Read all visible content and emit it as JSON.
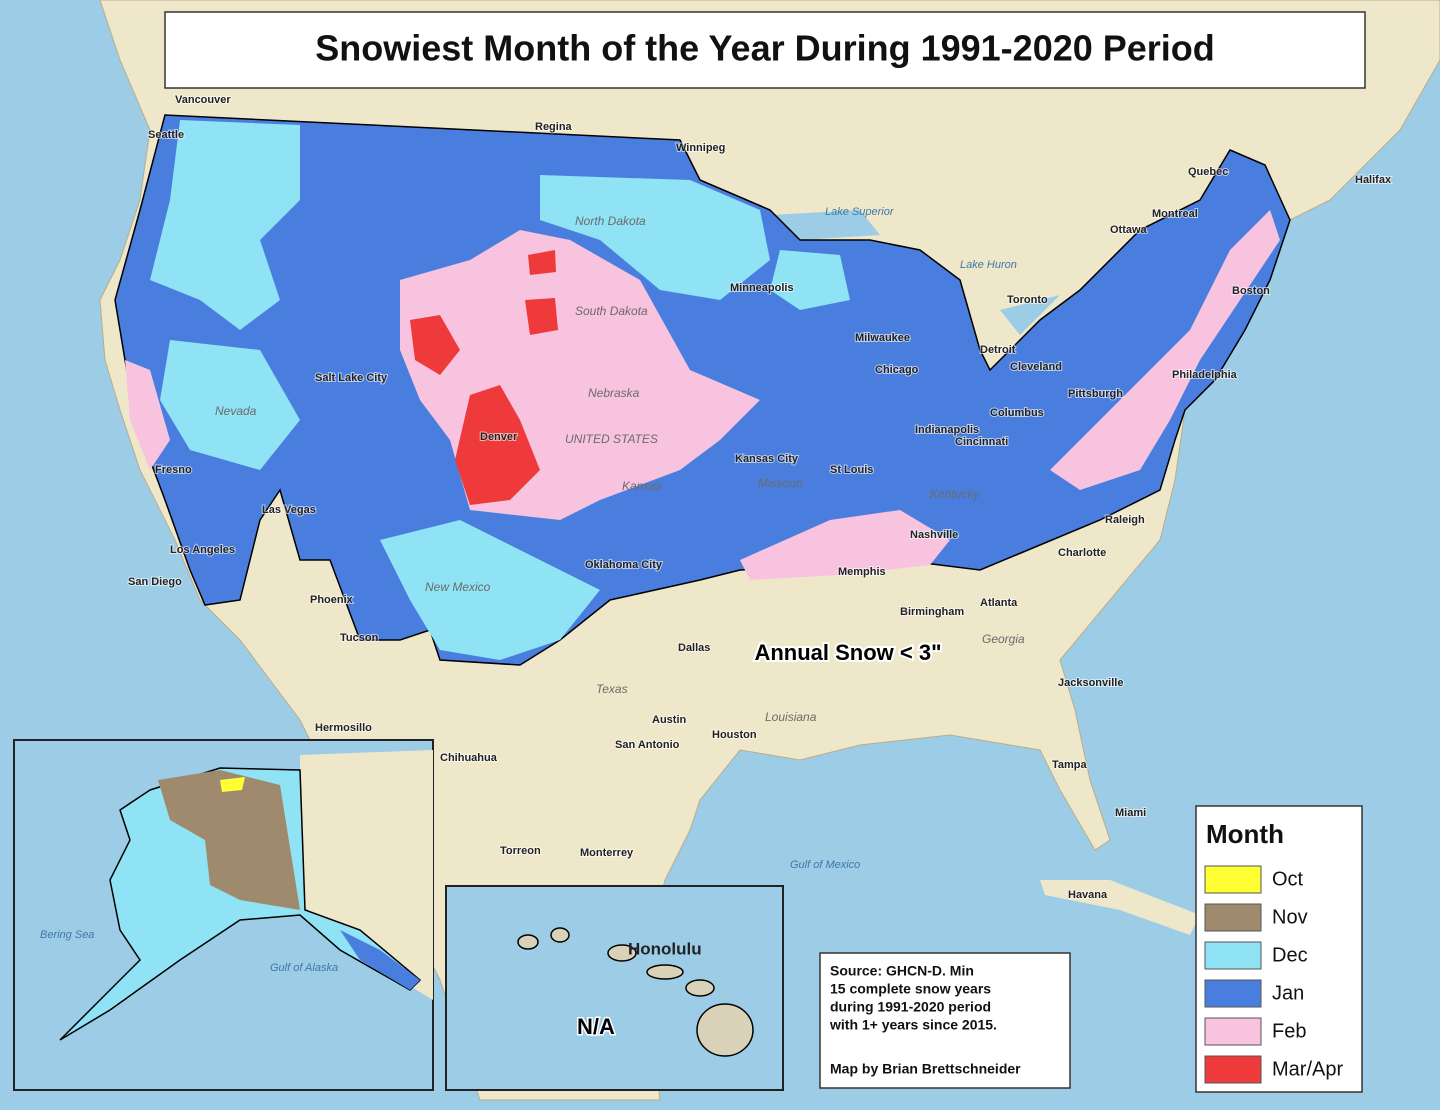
{
  "title": "Snowiest Month of the Year During 1991-2020 Period",
  "legend": {
    "title": "Month",
    "items": [
      {
        "label": "Oct",
        "color": "#ffff33"
      },
      {
        "label": "Nov",
        "color": "#a08a6e"
      },
      {
        "label": "Dec",
        "color": "#8fe3f5"
      },
      {
        "label": "Jan",
        "color": "#4a7ede"
      },
      {
        "label": "Feb",
        "color": "#f8c3de"
      },
      {
        "label": "Mar/Apr",
        "color": "#ee3a3a"
      }
    ]
  },
  "annotation": "Annual Snow < 3\"",
  "hawaii": {
    "city": "Honolulu",
    "note": "N/A"
  },
  "source": {
    "lines": [
      "Source: GHCN-D. Min",
      "15 complete snow years",
      "during 1991-2020 period",
      "with 1+ years since 2015."
    ],
    "credit": "Map by Brian Brettschneider"
  },
  "places": [
    "Vancouver",
    "Seattle",
    "Regina",
    "Winnipeg",
    "Quebec",
    "Halifax",
    "Ottawa",
    "Montreal",
    "Toronto",
    "Boston",
    "Minneapolis",
    "Milwaukee",
    "Chicago",
    "Detroit",
    "Cleveland",
    "Pittsburgh",
    "Philadelphia",
    "Columbus",
    "Indianapolis",
    "Cincinnati",
    "St Louis",
    "Kansas City",
    "Denver",
    "Salt Lake City",
    "Las Vegas",
    "Fresno",
    "Los Angeles",
    "San Diego",
    "Phoenix",
    "Tucson",
    "Oklahoma City",
    "Dallas",
    "Austin",
    "San Antonio",
    "Houston",
    "Memphis",
    "Nashville",
    "Atlanta",
    "Birmingham",
    "Charlotte",
    "Raleigh",
    "Jacksonville",
    "Tampa",
    "Miami",
    "Havana",
    "Monterrey",
    "Torreon",
    "Chihuahua",
    "Hermosillo"
  ],
  "regions": [
    "North Dakota",
    "South Dakota",
    "Nebraska",
    "Kansas",
    "Missouri",
    "Texas",
    "New Mexico",
    "Nevada",
    "Louisiana",
    "Georgia",
    "Kentucky",
    "UNITED STATES"
  ],
  "waters": [
    "Gulf of Mexico",
    "Lake Superior",
    "Lake Huron",
    "Bering Sea",
    "Gulf of Alaska"
  ]
}
